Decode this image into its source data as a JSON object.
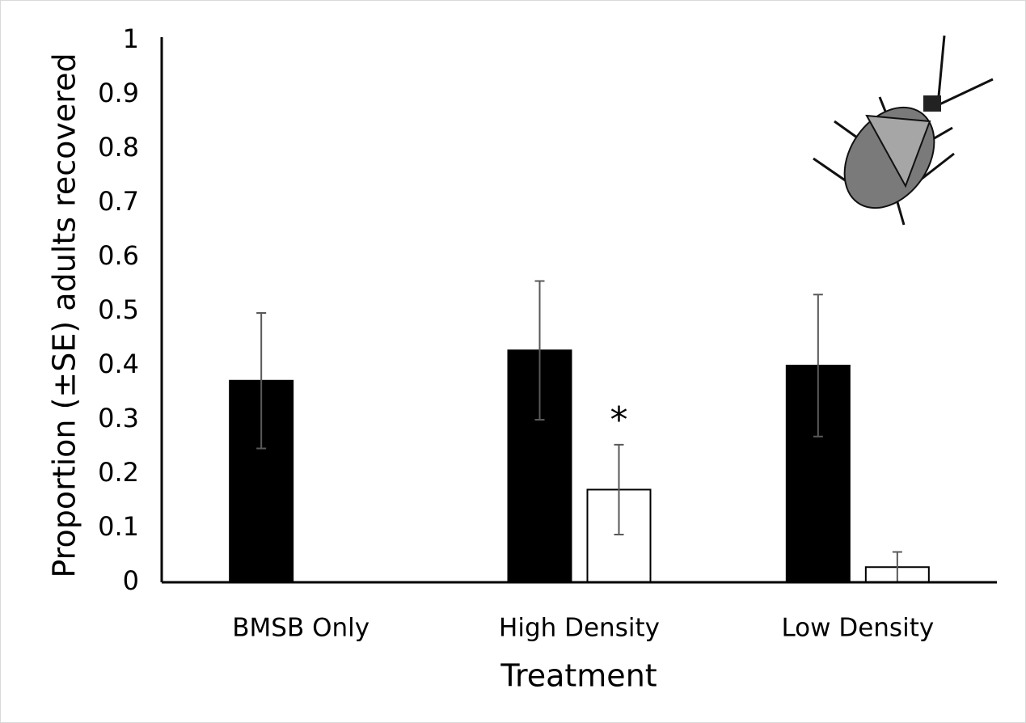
{
  "chart_data": {
    "type": "bar",
    "y_label": "Proportion (±SE) adults recovered",
    "x_label": "Treatment",
    "categories": [
      "BMSB Only",
      "High Density",
      "Low Density"
    ],
    "series": [
      {
        "color": "#000000",
        "values": [
          0.372,
          0.428,
          0.4
        ],
        "errors": [
          0.125,
          0.128,
          0.131
        ]
      },
      {
        "color": "#ffffff",
        "values": [
          null,
          0.171,
          0.028
        ],
        "errors": [
          null,
          0.083,
          0.028
        ]
      }
    ],
    "ylim": [
      0,
      1
    ],
    "yticks": [
      0,
      0.1,
      0.2,
      0.3,
      0.4,
      0.5,
      0.6,
      0.7,
      0.8,
      0.9,
      1
    ],
    "annotations": [
      {
        "text": "*",
        "category": 1,
        "series": 1
      }
    ]
  }
}
